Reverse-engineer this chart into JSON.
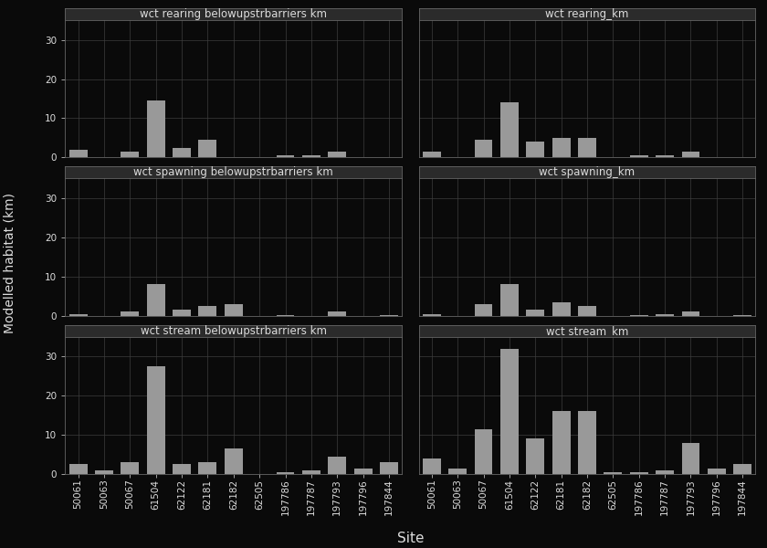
{
  "sites": [
    "50061",
    "50063",
    "50067",
    "61504",
    "62122",
    "62181",
    "62182",
    "62505",
    "197786",
    "197787",
    "197793",
    "197796",
    "197844"
  ],
  "panels": [
    {
      "title": "wct rearing belowupstrbarriers km",
      "row": 0,
      "col": 0,
      "values": [
        2.0,
        0.0,
        1.5,
        14.5,
        2.5,
        4.5,
        0.0,
        0.0,
        0.5,
        0.5,
        1.5,
        0.0,
        0.2
      ]
    },
    {
      "title": "wct rearing_km",
      "row": 0,
      "col": 1,
      "values": [
        1.5,
        0.0,
        4.5,
        14.0,
        4.0,
        5.0,
        5.0,
        0.0,
        0.5,
        0.5,
        1.5,
        0.0,
        0.2
      ]
    },
    {
      "title": "wct spawning belowupstrbarriers km",
      "row": 1,
      "col": 0,
      "values": [
        0.3,
        0.0,
        1.0,
        8.0,
        1.5,
        2.5,
        3.0,
        0.0,
        0.2,
        0.0,
        1.0,
        0.0,
        0.1
      ]
    },
    {
      "title": "wct spawning_km",
      "row": 1,
      "col": 1,
      "values": [
        0.3,
        0.0,
        3.0,
        8.0,
        1.5,
        3.5,
        2.5,
        0.0,
        0.2,
        0.5,
        1.0,
        0.0,
        0.1
      ]
    },
    {
      "title": "wct stream belowupstrbarriers km",
      "row": 2,
      "col": 0,
      "values": [
        2.5,
        1.0,
        3.0,
        27.5,
        2.5,
        3.0,
        6.5,
        0.0,
        0.5,
        1.0,
        4.5,
        1.5,
        3.0
      ]
    },
    {
      "title": "wct stream_km",
      "row": 2,
      "col": 1,
      "values": [
        4.0,
        1.5,
        11.5,
        32.0,
        9.0,
        16.0,
        16.0,
        0.5,
        0.5,
        1.0,
        8.0,
        1.5,
        2.5
      ]
    }
  ],
  "bar_color": "#999999",
  "background_color": "#0a0a0a",
  "panel_plot_bg": "#0a0a0a",
  "panel_title_bg": "#2b2b2b",
  "panel_border_color": "#666666",
  "grid_color": "#3d3d3d",
  "text_color": "#dddddd",
  "ylabel": "Modelled habitat (km)",
  "xlabel": "Site",
  "ylim": [
    0,
    35
  ],
  "yticks": [
    0,
    10,
    20,
    30
  ],
  "title_fontsize": 8.5,
  "tick_fontsize": 7.5,
  "label_fontsize": 10,
  "xlabel_fontsize": 11
}
